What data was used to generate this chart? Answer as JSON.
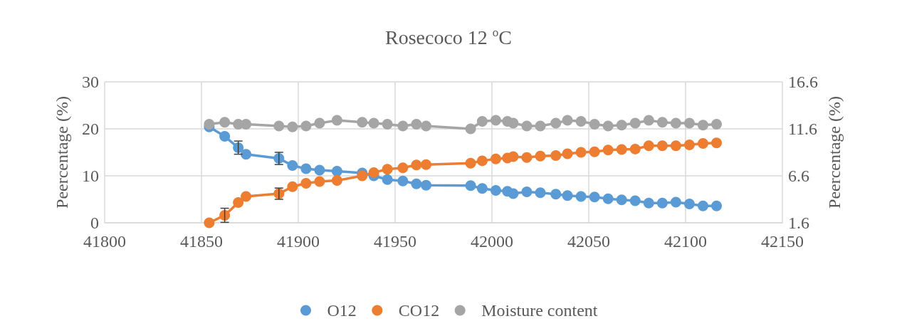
{
  "chart_data": {
    "type": "line",
    "title": "Rosecoco 12 $^{o}$C",
    "ylabel": "Peercentage (%)",
    "y2label": "Peercentage (%)",
    "x": [
      41854,
      41862,
      41869,
      41873,
      41890,
      41897,
      41904,
      41911,
      41920,
      41933,
      41939,
      41946,
      41954,
      41961,
      41966,
      41989,
      41995,
      42002,
      42008,
      42011,
      42018,
      42025,
      42033,
      42039,
      42046,
      42053,
      42060,
      42067,
      42074,
      42081,
      42088,
      42095,
      42102,
      42109,
      42116
    ],
    "series": [
      {
        "name": "O12",
        "color": "#5b9bd5",
        "values": [
          20.4,
          18.4,
          16.0,
          14.6,
          13.7,
          12.2,
          11.5,
          11.2,
          11.0,
          10.6,
          10.0,
          9.2,
          8.9,
          8.3,
          8.0,
          7.9,
          7.3,
          6.9,
          6.7,
          6.2,
          6.6,
          6.4,
          6.1,
          5.8,
          5.6,
          5.5,
          5.1,
          4.9,
          4.7,
          4.2,
          4.2,
          4.4,
          4.0,
          3.6,
          3.6
        ],
        "errors": [
          null,
          null,
          1.4,
          null,
          1.3,
          null,
          null,
          null,
          null,
          null,
          null,
          null,
          null,
          null,
          null,
          null,
          null,
          null,
          null,
          null,
          null,
          null,
          null,
          null,
          null,
          null,
          null,
          null,
          null,
          null,
          null,
          null,
          null,
          null,
          null
        ]
      },
      {
        "name": "CO12",
        "color": "#ed7d31",
        "values": [
          0.0,
          1.6,
          4.3,
          5.6,
          6.2,
          7.7,
          8.4,
          8.8,
          9.0,
          10.0,
          10.7,
          11.4,
          11.7,
          12.3,
          12.4,
          12.7,
          13.2,
          13.6,
          13.8,
          14.1,
          13.9,
          14.2,
          14.3,
          14.7,
          15.0,
          15.1,
          15.5,
          15.6,
          15.7,
          16.4,
          16.4,
          16.4,
          16.6,
          16.9,
          17.0
        ],
        "errors": [
          null,
          1.5,
          null,
          null,
          1.2,
          null,
          null,
          null,
          null,
          null,
          null,
          null,
          null,
          null,
          null,
          null,
          null,
          null,
          null,
          null,
          null,
          null,
          null,
          null,
          null,
          null,
          null,
          null,
          null,
          null,
          null,
          null,
          null,
          null,
          null
        ]
      },
      {
        "name": "Moisture content",
        "color": "#a5a5a5",
        "axis": "y2",
        "values": [
          12.1,
          12.3,
          12.1,
          12.1,
          11.9,
          11.8,
          11.9,
          12.2,
          12.5,
          12.3,
          12.2,
          12.1,
          11.9,
          12.1,
          11.9,
          11.6,
          12.4,
          12.5,
          12.4,
          12.2,
          11.9,
          11.9,
          12.2,
          12.5,
          12.4,
          12.1,
          11.9,
          12.0,
          12.2,
          12.5,
          12.3,
          12.2,
          12.2,
          12.0,
          12.1
        ]
      }
    ],
    "xlim": [
      41800,
      42150
    ],
    "xticks": [
      41800,
      41850,
      41900,
      41950,
      42000,
      42050,
      42100,
      42150
    ],
    "ylim": [
      0,
      30
    ],
    "yticks": [
      0,
      10,
      20,
      30
    ],
    "y2lim": [
      1.6,
      16.6
    ],
    "y2ticks": [
      1.6,
      6.6,
      11.6,
      16.6
    ],
    "grid": true,
    "legend": "bottom",
    "marker": "circle",
    "line_style": "solid"
  }
}
